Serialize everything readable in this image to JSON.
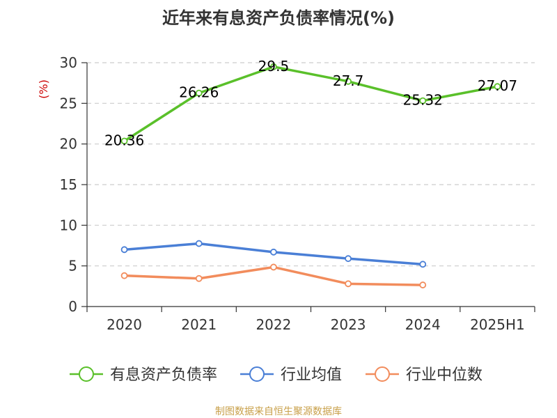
{
  "title": "近年来有息资产负债率情况(%)",
  "source": "制图数据来自恒生聚源数据库",
  "chart_data": {
    "type": "line",
    "title": "近年来有息资产负债率情况(%)",
    "ylabel": "(%)",
    "xlabel": "",
    "categories": [
      "2020",
      "2021",
      "2022",
      "2023",
      "2024",
      "2025H1"
    ],
    "ylim": [
      0,
      30
    ],
    "yticks": [
      0,
      5,
      10,
      15,
      20,
      25,
      30
    ],
    "grid": true,
    "legend_position": "bottom",
    "series": [
      {
        "name": "有息资产负债率",
        "color": "#5ac02a",
        "values": [
          20.36,
          26.26,
          29.5,
          27.7,
          25.32,
          27.07
        ],
        "show_labels": true
      },
      {
        "name": "行业均值",
        "color": "#4a7fd6",
        "values": [
          7.0,
          7.75,
          6.7,
          5.9,
          5.2,
          null
        ],
        "show_labels": false
      },
      {
        "name": "行业中位数",
        "color": "#f28c5c",
        "values": [
          3.8,
          3.45,
          4.85,
          2.8,
          2.65,
          null
        ],
        "show_labels": false
      }
    ]
  }
}
